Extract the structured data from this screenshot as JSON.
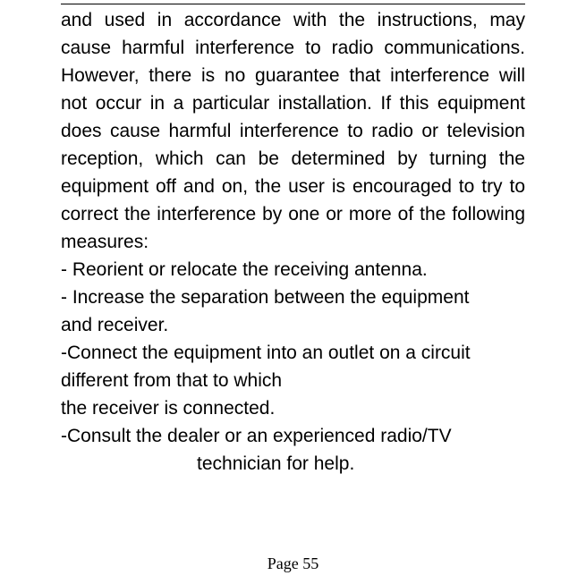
{
  "body": {
    "p1": "and used in accordance with the instructions, may cause harmful interference to radio communications. However, there is no guarantee that interference will not occur in a particular installation. If this equipment does cause harmful interference to radio or television reception, which can be determined by turning the equipment off and on, the user is encouraged to try to correct the interference by one or more of the following measures:",
    "b1": "- Reorient or relocate the receiving antenna.",
    "b2a": "- Increase the separation between the equipment",
    "b2b": "and receiver.",
    "b3a": "-Connect the equipment into an outlet on a circuit",
    "b3b": "different from that to which",
    "b3c": "the receiver is connected.",
    "b4a": "-Consult the dealer or an experienced radio/TV",
    "b4b": "technician for help."
  },
  "footer": {
    "pageNumber": "Page 55"
  }
}
